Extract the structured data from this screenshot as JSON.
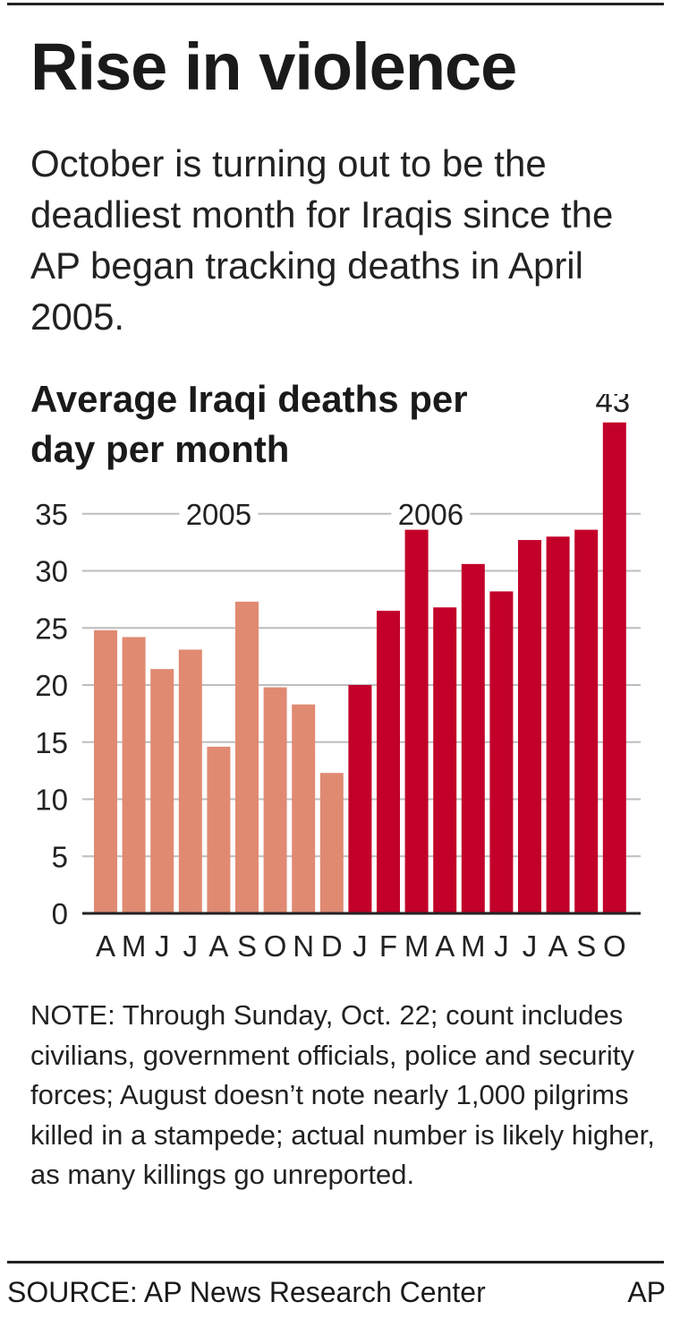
{
  "title": "Rise in violence",
  "subtitle": "October is turning out to be the deadliest month for Iraqis since the AP began tracking deaths in April 2005.",
  "note": "NOTE: Through Sunday, Oct. 22; count includes civilians, government officials, police and security forces; August doesn’t note nearly 1,000 pilgrims killed in a stampede; actual number is likely higher, as many killings go unreported.",
  "source": "SOURCE: AP News Research Center",
  "credit": "AP",
  "colors": {
    "bar2005": "#e08a72",
    "bar2006": "#c20029",
    "grid": "#bdbdbd",
    "axis": "#222222"
  },
  "chart_data": {
    "type": "bar",
    "title": "Average Iraqi deaths per day per month",
    "categories": [
      "A",
      "M",
      "J",
      "J",
      "A",
      "S",
      "O",
      "N",
      "D",
      "J",
      "F",
      "M",
      "A",
      "M",
      "J",
      "J",
      "A",
      "S",
      "O"
    ],
    "series": [
      {
        "name": "2005",
        "values": [
          24.8,
          24.2,
          21.4,
          23.1,
          14.6,
          27.3,
          19.8,
          18.3,
          12.3,
          null,
          null,
          null,
          null,
          null,
          null,
          null,
          null,
          null,
          null
        ]
      },
      {
        "name": "2006",
        "values": [
          null,
          null,
          null,
          null,
          null,
          null,
          null,
          null,
          null,
          20.0,
          26.5,
          33.6,
          26.8,
          30.6,
          28.2,
          32.7,
          33.0,
          33.6,
          43
        ]
      }
    ],
    "value_label": {
      "category_index": 18,
      "text": "43"
    },
    "yticks": [
      0,
      5,
      10,
      15,
      20,
      25,
      30,
      35
    ],
    "ylim": [
      0,
      45
    ],
    "grid": true,
    "xlabel": "",
    "ylabel": ""
  }
}
